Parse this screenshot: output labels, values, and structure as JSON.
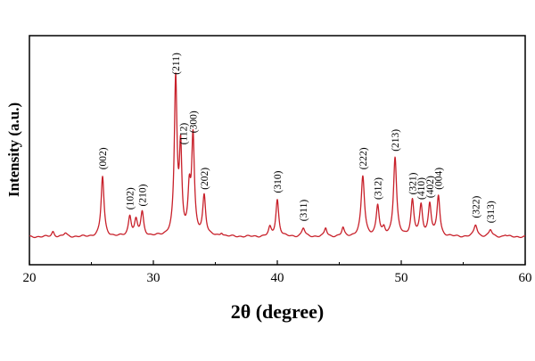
{
  "chart_data": {
    "type": "line",
    "title": "",
    "xlabel": "2θ (degree)",
    "ylabel": "Intensity (a.u.)",
    "xlim": [
      20,
      60
    ],
    "ylim": [
      0,
      100
    ],
    "xticks": [
      "20",
      "30",
      "40",
      "50",
      "60"
    ],
    "y_ticklabels_shown": false,
    "grid": false,
    "legend": "none",
    "line_color": "#c8202a",
    "baseline": 5,
    "series": [
      {
        "peaks": [
          {
            "x": 21.9,
            "y": 8,
            "w": 0.12
          },
          {
            "x": 22.9,
            "y": 7,
            "w": 0.15
          },
          {
            "x": 25.9,
            "y": 41,
            "w": 0.14
          },
          {
            "x": 28.1,
            "y": 17,
            "w": 0.14
          },
          {
            "x": 28.6,
            "y": 14,
            "w": 0.14
          },
          {
            "x": 29.1,
            "y": 19,
            "w": 0.14
          },
          {
            "x": 31.8,
            "y": 98,
            "w": 0.13
          },
          {
            "x": 32.2,
            "y": 55,
            "w": 0.12
          },
          {
            "x": 32.9,
            "y": 30,
            "w": 0.13
          },
          {
            "x": 33.2,
            "y": 63,
            "w": 0.13
          },
          {
            "x": 34.1,
            "y": 29,
            "w": 0.14
          },
          {
            "x": 35.5,
            "y": 7,
            "w": 0.12
          },
          {
            "x": 39.4,
            "y": 10,
            "w": 0.13
          },
          {
            "x": 40.0,
            "y": 27,
            "w": 0.14
          },
          {
            "x": 42.1,
            "y": 10,
            "w": 0.15
          },
          {
            "x": 43.9,
            "y": 10,
            "w": 0.12
          },
          {
            "x": 45.3,
            "y": 10,
            "w": 0.12
          },
          {
            "x": 46.9,
            "y": 41,
            "w": 0.16
          },
          {
            "x": 48.1,
            "y": 23,
            "w": 0.14
          },
          {
            "x": 48.6,
            "y": 9,
            "w": 0.12
          },
          {
            "x": 49.5,
            "y": 52,
            "w": 0.15
          },
          {
            "x": 50.9,
            "y": 26,
            "w": 0.14
          },
          {
            "x": 51.6,
            "y": 23,
            "w": 0.14
          },
          {
            "x": 52.3,
            "y": 24,
            "w": 0.14
          },
          {
            "x": 53.0,
            "y": 29,
            "w": 0.14
          },
          {
            "x": 56.0,
            "y": 12,
            "w": 0.16
          },
          {
            "x": 57.2,
            "y": 9,
            "w": 0.15
          },
          {
            "x": 58.4,
            "y": 6,
            "w": 0.12
          }
        ]
      }
    ],
    "annotations": [
      {
        "text": "(002)",
        "x": 25.9,
        "y": 41
      },
      {
        "text": "(102)",
        "x": 28.1,
        "y": 17
      },
      {
        "text": "(210)",
        "x": 29.1,
        "y": 19
      },
      {
        "text": "(211)",
        "x": 31.8,
        "y": 98
      },
      {
        "text": "(300)",
        "x": 33.2,
        "y": 63
      },
      {
        "text": "(112)",
        "x": 32.4,
        "y": 56
      },
      {
        "text": "(202)",
        "x": 34.1,
        "y": 29
      },
      {
        "text": "(310)",
        "x": 40.0,
        "y": 27
      },
      {
        "text": "(311)",
        "x": 42.1,
        "y": 10
      },
      {
        "text": "(222)",
        "x": 46.9,
        "y": 41
      },
      {
        "text": "(312)",
        "x": 48.1,
        "y": 23
      },
      {
        "text": "(213)",
        "x": 49.5,
        "y": 52
      },
      {
        "text": "(321)",
        "x": 50.9,
        "y": 26
      },
      {
        "text": "(410)",
        "x": 51.6,
        "y": 23
      },
      {
        "text": "(402)",
        "x": 52.3,
        "y": 24
      },
      {
        "text": "(004)",
        "x": 53.0,
        "y": 29
      },
      {
        "text": "(322)",
        "x": 56.0,
        "y": 12
      },
      {
        "text": "(313)",
        "x": 57.2,
        "y": 9
      }
    ]
  }
}
